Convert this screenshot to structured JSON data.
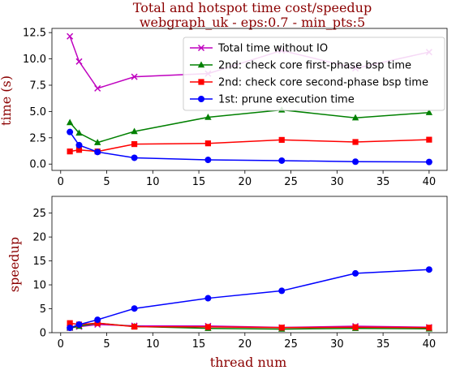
{
  "chart_data": {
    "title": "Total and hotspot time cost/speedup",
    "subtitle": "webgraph_uk - eps:0.7 - min_pts:5",
    "xlabel": "thread num",
    "x": [
      1,
      2,
      4,
      8,
      16,
      24,
      32,
      40
    ],
    "xticks": [
      0,
      5,
      10,
      15,
      20,
      25,
      30,
      35,
      40
    ],
    "xlim": [
      -0.95,
      41.95
    ],
    "panels": [
      {
        "type": "line",
        "ylabel": "time (s)",
        "ylim": [
          -0.6,
          12.9
        ],
        "yticks": [
          0.0,
          2.5,
          5.0,
          7.5,
          10.0,
          12.5
        ],
        "ytick_labels": [
          "0.0",
          "2.5",
          "5.0",
          "7.5",
          "10.0",
          "12.5"
        ],
        "legend": "upper-right",
        "series": [
          {
            "name": "Total time without IO",
            "color": "#bf00bf",
            "marker": "x",
            "values": [
              12.15,
              9.75,
              7.2,
              8.3,
              8.6,
              10.8,
              9.1,
              10.65
            ]
          },
          {
            "name": "2nd: check core first-phase bsp time",
            "color": "#008000",
            "marker": "triangle",
            "values": [
              3.95,
              2.95,
              2.05,
              3.1,
              4.45,
              5.15,
              4.4,
              4.9
            ]
          },
          {
            "name": "2nd: check core second-phase bsp time",
            "color": "#ff0000",
            "marker": "square",
            "values": [
              1.2,
              1.35,
              1.2,
              1.9,
              1.97,
              2.3,
              2.1,
              2.32
            ]
          },
          {
            "name": "1st: prune execution time",
            "color": "#0000ff",
            "marker": "circle",
            "values": [
              3.05,
              1.8,
              1.15,
              0.6,
              0.4,
              0.33,
              0.23,
              0.2
            ]
          }
        ]
      },
      {
        "type": "line",
        "ylabel": "speedup",
        "ylim": [
          0,
          28.5
        ],
        "yticks": [
          0,
          5,
          10,
          15,
          20,
          25
        ],
        "ytick_labels": [
          "0",
          "5",
          "10",
          "15",
          "20",
          "25"
        ],
        "series": [
          {
            "name": "Total time without IO",
            "color": "#bf00bf",
            "marker": "x",
            "values": [
              1.0,
              1.25,
              1.7,
              1.45,
              1.4,
              1.1,
              1.35,
              1.15
            ]
          },
          {
            "name": "2nd: check core first-phase bsp time",
            "color": "#008000",
            "marker": "triangle",
            "values": [
              1.0,
              1.35,
              2.0,
              1.3,
              0.9,
              0.75,
              0.9,
              0.8
            ]
          },
          {
            "name": "2nd: check core second-phase bsp time",
            "color": "#ff0000",
            "marker": "square",
            "values": [
              2.0,
              1.7,
              2.0,
              1.25,
              1.2,
              1.05,
              1.15,
              1.05
            ]
          },
          {
            "name": "1st: prune execution time",
            "color": "#0000ff",
            "marker": "circle",
            "values": [
              1.0,
              1.7,
              2.7,
              5.05,
              7.2,
              8.75,
              12.4,
              13.2
            ]
          }
        ]
      }
    ]
  }
}
